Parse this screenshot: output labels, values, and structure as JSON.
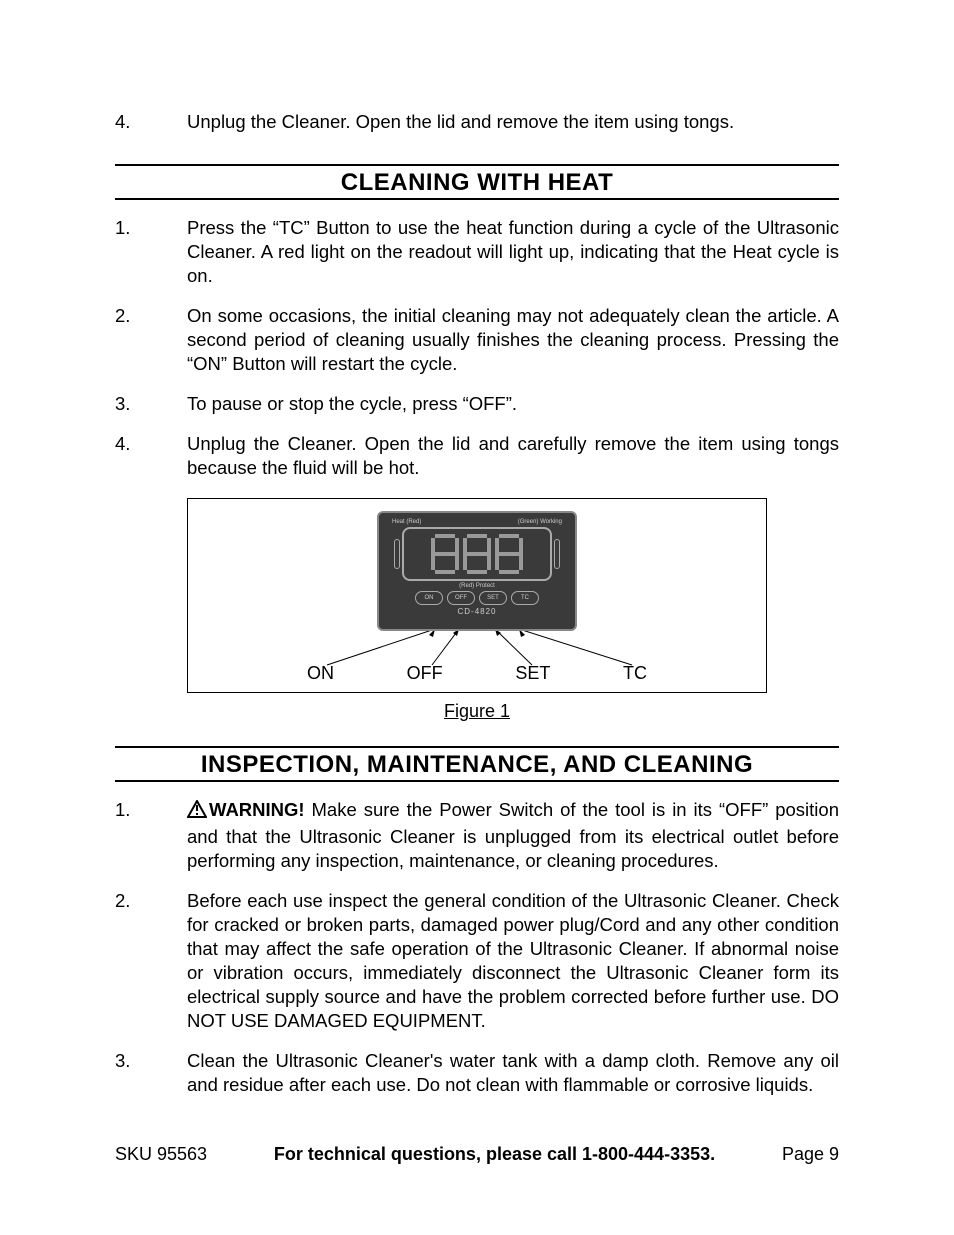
{
  "topItem": {
    "num": "4.",
    "text": "Unplug the Cleaner.  Open the lid and remove the item using tongs."
  },
  "section1": {
    "title": "CLEANING WITH HEAT",
    "items": [
      {
        "num": "1.",
        "text": "Press the “TC” Button to use the heat function during a cycle of the Ultrasonic Cleaner.  A red light on the readout will light up, indicating that the Heat cycle is on."
      },
      {
        "num": "2.",
        "text": "On some occasions, the initial cleaning may not adequately clean the article. A second period of cleaning usually finishes the cleaning process.  Pressing the “ON” Button will restart the cycle."
      },
      {
        "num": "3.",
        "text": "To pause or stop the cycle, press “OFF”."
      },
      {
        "num": "4.",
        "text": "Unplug the Cleaner.  Open the lid and carefully remove the item using tongs because the fluid will be hot."
      }
    ]
  },
  "figure": {
    "panelTop": {
      "left": "Heat (Red)",
      "right": "(Green) Working"
    },
    "panelMid": "(Red) Protect",
    "buttons": [
      "ON",
      "OFF",
      "SET",
      "TC"
    ],
    "model": "CD-4820",
    "labels": [
      "ON",
      "OFF",
      "SET",
      "TC"
    ],
    "caption": "Figure 1"
  },
  "section2": {
    "title": "INSPECTION, MAINTENANCE, AND CLEANING",
    "items": [
      {
        "num": "1.",
        "warning": "WARNING!",
        "text": "  Make sure the Power Switch of the tool is in its “OFF” position and that the  Ultrasonic Cleaner is unplugged from its electrical outlet before performing any inspection, maintenance, or cleaning procedures."
      },
      {
        "num": "2.",
        "text": "Before each use inspect the general condition of the Ultrasonic Cleaner.  Check for cracked or broken parts, damaged power plug/Cord and any other condition that may affect the safe operation of the Ultrasonic Cleaner.  If abnormal noise or vibration occurs, immediately disconnect the Ultrasonic Cleaner form its electrical supply source and have the problem corrected before further use.  DO NOT USE DAMAGED EQUIPMENT."
      },
      {
        "num": "3.",
        "text": "Clean the Ultrasonic Cleaner's water tank with a damp cloth.  Remove any oil and residue after each use.  Do not clean with flammable or corrosive liquids."
      }
    ]
  },
  "footer": {
    "sku": "SKU 95563",
    "center": "For technical questions, please call 1-800-444-3353.",
    "page": "Page 9"
  }
}
